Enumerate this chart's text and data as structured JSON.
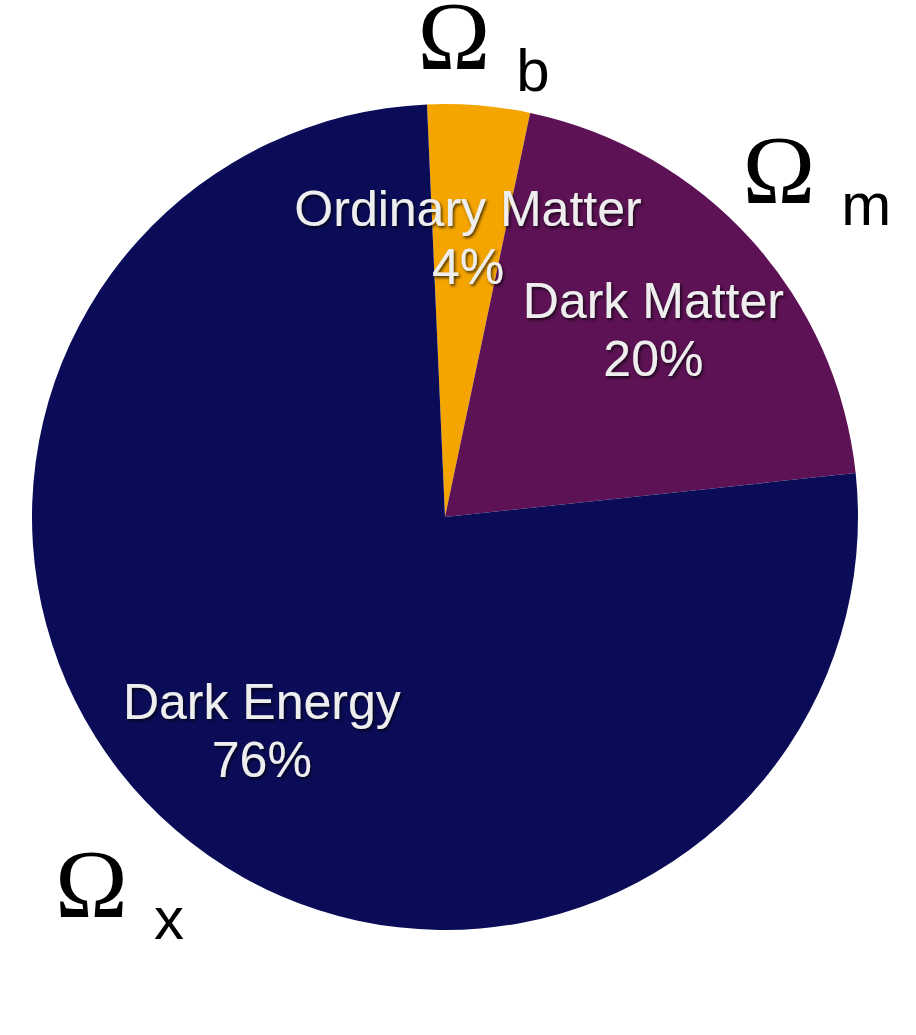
{
  "chart_data": {
    "type": "pie",
    "categories": [
      "Ordinary Matter",
      "Dark Matter",
      "Dark Energy"
    ],
    "values": [
      4,
      20,
      76
    ],
    "colors": [
      "#f5a500",
      "#5c1254",
      "#0a0c58"
    ],
    "value_labels": [
      "4%",
      "20%",
      "76%"
    ],
    "annotations": [
      "Ω$_{b}$",
      "Ω$_{m}$",
      "Ω$_{x}$"
    ]
  }
}
